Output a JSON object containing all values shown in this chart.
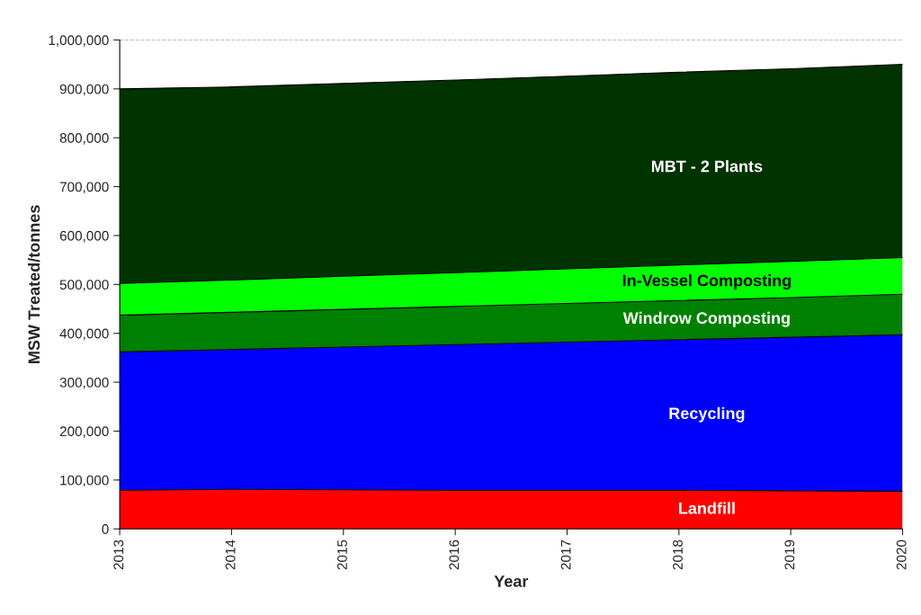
{
  "chart_data": {
    "type": "area",
    "stacked": true,
    "xlabel": "Year",
    "ylabel": "MSW Treated/tonnes",
    "x": [
      2013,
      2014,
      2015,
      2016,
      2017,
      2018,
      2019,
      2020
    ],
    "series": [
      {
        "name": "Landfill",
        "color": "#ff0000",
        "values": [
          79000,
          81000,
          80000,
          79000,
          79000,
          79000,
          78000,
          77000
        ]
      },
      {
        "name": "Recycling",
        "color": "#0000ff",
        "values": [
          283000,
          286000,
          292000,
          298000,
          303000,
          308000,
          314000,
          320000
        ]
      },
      {
        "name": "Windrow Composting",
        "color": "#008000",
        "values": [
          75000,
          76000,
          77000,
          78000,
          79000,
          80000,
          81000,
          83000
        ]
      },
      {
        "name": "In-Vessel Composting",
        "color": "#00ff00",
        "values": [
          65000,
          66000,
          68000,
          69000,
          71000,
          73000,
          74000,
          75000
        ]
      },
      {
        "name": "MBT - 2 Plants",
        "color": "#003300",
        "values": [
          398000,
          395000,
          394000,
          394000,
          394000,
          394000,
          394000,
          395000
        ]
      }
    ],
    "xlim": [
      2013,
      2020
    ],
    "xticks": [
      2013,
      2014,
      2015,
      2016,
      2017,
      2018,
      2019,
      2020
    ],
    "ylim": [
      0,
      1000000
    ],
    "yticks": [
      {
        "value": 0,
        "label": "0"
      },
      {
        "value": 100000,
        "label": "100,000"
      },
      {
        "value": 200000,
        "label": "200,000"
      },
      {
        "value": 300000,
        "label": "300,000"
      },
      {
        "value": 400000,
        "label": "400,000"
      },
      {
        "value": 500000,
        "label": "500,000"
      },
      {
        "value": 600000,
        "label": "600,000"
      },
      {
        "value": 700000,
        "label": "700,000"
      },
      {
        "value": 800000,
        "label": "800,000"
      },
      {
        "value": 900000,
        "label": "900,000"
      },
      {
        "value": 1000000,
        "label": "1,000,000"
      }
    ],
    "ref_lines": [
      {
        "axis": "y",
        "value": 1000000,
        "color": "#808080",
        "line_style": "dashed"
      }
    ],
    "legend": false
  }
}
